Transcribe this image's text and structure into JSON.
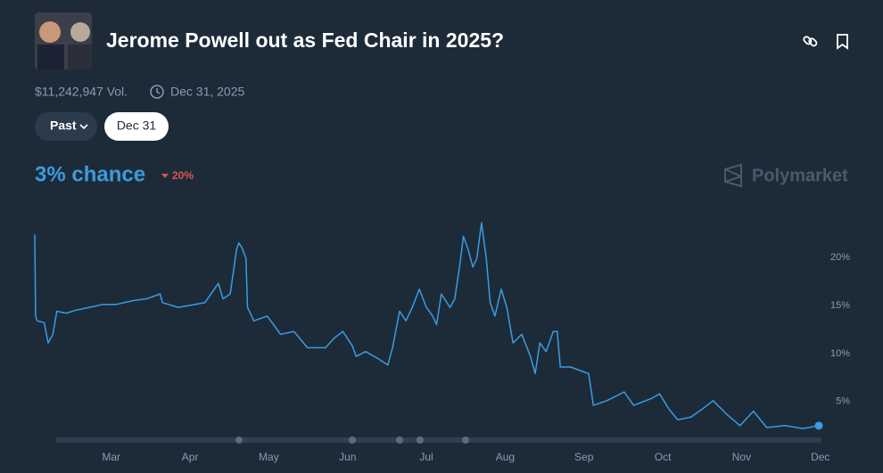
{
  "header": {
    "title": "Jerome Powell out as Fed Chair in 2025?",
    "volume": "$11,242,947 Vol.",
    "end_date": "Dec 31, 2025"
  },
  "filters": [
    "Past",
    "Dec 31"
  ],
  "chance": "3% chance",
  "change": "20%",
  "brand": "Polymarket",
  "chart_data": {
    "type": "line",
    "color": "#3b9be0",
    "x": [
      2.03,
      2.04,
      2.06,
      2.15,
      2.2,
      2.26,
      2.31,
      2.43,
      2.55,
      2.72,
      2.89,
      3.06,
      3.28,
      3.45,
      3.62,
      3.65,
      3.85,
      4.19,
      4.36,
      4.42,
      4.51,
      4.59,
      4.62,
      4.66,
      4.71,
      4.73,
      4.81,
      4.98,
      5.15,
      5.32,
      5.49,
      5.72,
      5.83,
      5.94,
      6.06,
      6.11,
      6.23,
      6.4,
      6.51,
      6.57,
      6.66,
      6.74,
      6.82,
      6.91,
      7.0,
      7.08,
      7.13,
      7.19,
      7.3,
      7.36,
      7.42,
      7.47,
      7.53,
      7.59,
      7.64,
      7.7,
      7.76,
      7.81,
      7.87,
      7.95,
      8.02,
      8.1,
      8.21,
      8.32,
      8.38,
      8.44,
      8.52,
      8.61,
      8.66,
      8.7,
      8.83,
      9.06,
      9.12,
      9.29,
      9.51,
      9.63,
      9.85,
      9.96,
      10.08,
      10.19,
      10.36,
      10.53,
      10.64,
      10.81,
      10.98,
      11.15,
      11.32,
      11.55,
      11.78,
      11.98
    ],
    "values": [
      22.4,
      13.9,
      13.4,
      13.2,
      11.1,
      12.0,
      14.4,
      14.2,
      14.5,
      14.8,
      15.1,
      15.1,
      15.5,
      15.7,
      16.2,
      15.3,
      14.8,
      15.3,
      17.3,
      15.7,
      16.2,
      20.8,
      21.5,
      21.0,
      19.9,
      14.8,
      13.4,
      13.9,
      12.0,
      12.3,
      10.6,
      10.6,
      11.6,
      12.3,
      10.8,
      9.7,
      10.2,
      9.4,
      8.8,
      10.6,
      14.4,
      13.4,
      14.8,
      16.7,
      14.8,
      13.9,
      13.0,
      16.2,
      14.8,
      15.7,
      19.0,
      22.2,
      20.8,
      19.0,
      19.9,
      23.6,
      19.9,
      15.3,
      13.9,
      16.7,
      14.8,
      11.1,
      12.0,
      9.7,
      7.9,
      11.1,
      10.2,
      12.3,
      12.3,
      8.6,
      8.6,
      7.9,
      4.6,
      5.1,
      6.0,
      4.6,
      5.3,
      5.8,
      4.2,
      3.1,
      3.4,
      4.4,
      5.1,
      3.7,
      2.5,
      4.0,
      2.3,
      2.5,
      2.2,
      2.5
    ],
    "xlim": [
      2.03,
      11.98
    ],
    "xticks": [
      {
        "value": 3,
        "label": "Mar"
      },
      {
        "value": 4,
        "label": "Apr"
      },
      {
        "value": 5,
        "label": "May"
      },
      {
        "value": 6,
        "label": "Jun"
      },
      {
        "value": 7,
        "label": "Jul"
      },
      {
        "value": 8,
        "label": "Aug"
      },
      {
        "value": 9,
        "label": "Sep"
      },
      {
        "value": 10,
        "label": "Oct"
      },
      {
        "value": 11,
        "label": "Nov"
      },
      {
        "value": 12,
        "label": "Dec"
      }
    ],
    "ylim": [
      1,
      25
    ],
    "yticks": [
      {
        "value": 5,
        "label": "5%"
      },
      {
        "value": 10,
        "label": "10%"
      },
      {
        "value": 15,
        "label": "15%"
      },
      {
        "value": 20,
        "label": "20%"
      }
    ],
    "grid": false
  }
}
